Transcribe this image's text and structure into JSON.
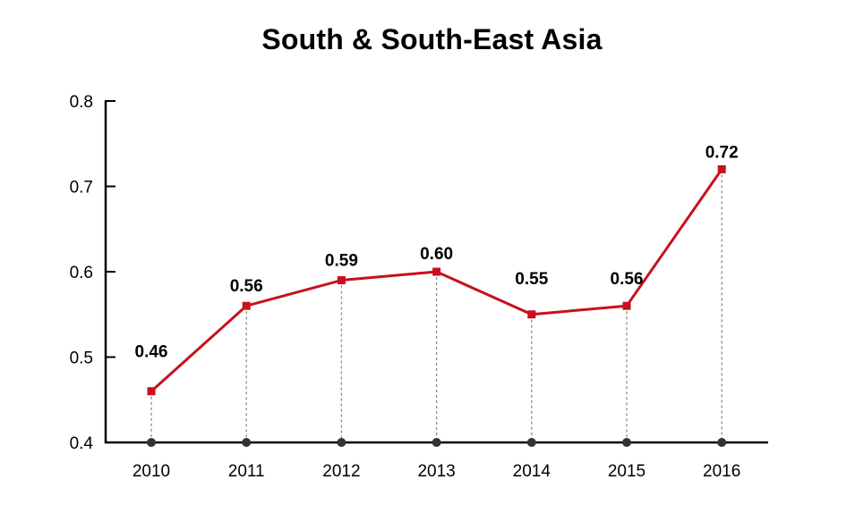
{
  "chart_data": {
    "type": "line",
    "title": "South & South-East Asia",
    "xlabel": "",
    "ylabel": "",
    "categories": [
      "2010",
      "2011",
      "2012",
      "2013",
      "2014",
      "2015",
      "2016"
    ],
    "series": [
      {
        "values": [
          0.46,
          0.56,
          0.59,
          0.6,
          0.55,
          0.56,
          0.72
        ],
        "data_labels": [
          "0.46",
          "0.56",
          "0.59",
          "0.60",
          "0.55",
          "0.56",
          "0.72"
        ],
        "color": "#c8101e"
      }
    ],
    "ylim": [
      0.4,
      0.8
    ],
    "y_ticks": [
      "0.4",
      "0.5",
      "0.6",
      "0.7",
      "0.8"
    ],
    "y_tick_values": [
      0.4,
      0.5,
      0.6,
      0.7,
      0.8
    ],
    "grid": false,
    "legend": "none",
    "axis_color": "#000000",
    "drop_line_color": "#8c8c8c",
    "base_marker_color": "#333333"
  }
}
